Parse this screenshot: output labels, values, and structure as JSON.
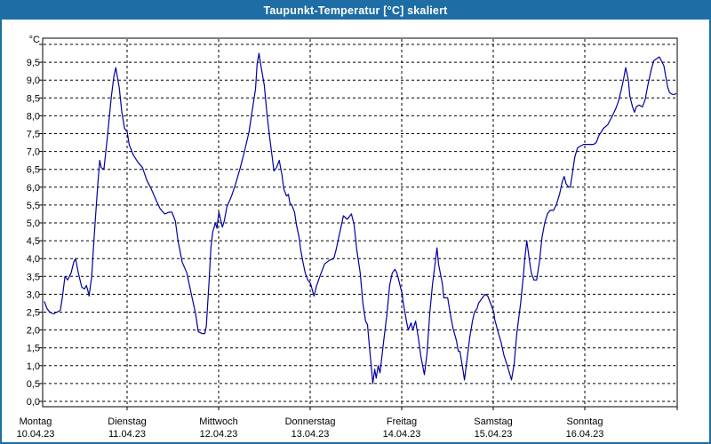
{
  "window": {
    "title": "Taupunkt-Temperatur [°C] skaliert"
  },
  "colors": {
    "accent_blue": "#1E6EA5",
    "line_blue": "#0000A0",
    "grid_color": "#000000",
    "background": "#FFFFFF",
    "title_text": "#FFFFFF",
    "label_text": "#000000"
  },
  "chart_data": {
    "type": "line",
    "title": "Taupunkt-Temperatur [°C] skaliert",
    "unit_label": "°C",
    "ylabel": "",
    "ylim": [
      0,
      10
    ],
    "y_tick_step": 0.5,
    "grid": true,
    "y_tick_labels": [
      "9,5",
      "9,0",
      "8,5",
      "8,0",
      "7,5",
      "7,0",
      "6,5",
      "6,0",
      "5,5",
      "5,0",
      "4,5",
      "4,0",
      "3,5",
      "3,0",
      "2,5",
      "2,0",
      "1,5",
      "1,0",
      "0,5",
      "0,0"
    ],
    "x_axis_days": [
      {
        "weekday": "Montag",
        "date": "10.04.23"
      },
      {
        "weekday": "Dienstag",
        "date": "11.04.23"
      },
      {
        "weekday": "Mittwoch",
        "date": "12.04.23"
      },
      {
        "weekday": "Donnerstag",
        "date": "13.04.23"
      },
      {
        "weekday": "Freitag",
        "date": "14.04.23"
      },
      {
        "weekday": "Samstag",
        "date": "15.04.23"
      },
      {
        "weekday": "Sonntag",
        "date": "16.04.23"
      }
    ],
    "x_hours_range": [
      0,
      168
    ],
    "series": [
      {
        "name": "Taupunkt",
        "color": "#0000A0",
        "points": [
          [
            2.3,
            2.8
          ],
          [
            3.0,
            2.6
          ],
          [
            3.7,
            2.5
          ],
          [
            4.7,
            2.45
          ],
          [
            5.6,
            2.5
          ],
          [
            6.5,
            2.55
          ],
          [
            7.0,
            2.9
          ],
          [
            7.7,
            3.5
          ],
          [
            8.4,
            3.4
          ],
          [
            9.3,
            3.6
          ],
          [
            10.0,
            3.9
          ],
          [
            10.5,
            4.0
          ],
          [
            11.2,
            3.6
          ],
          [
            12.1,
            3.2
          ],
          [
            12.8,
            3.15
          ],
          [
            13.3,
            3.25
          ],
          [
            13.7,
            3.1
          ],
          [
            14.0,
            2.95
          ],
          [
            14.7,
            3.5
          ],
          [
            15.1,
            4.2
          ],
          [
            15.6,
            5.0
          ],
          [
            16.3,
            6.1
          ],
          [
            16.8,
            6.75
          ],
          [
            17.2,
            6.55
          ],
          [
            17.9,
            6.5
          ],
          [
            18.4,
            7.0
          ],
          [
            18.9,
            7.5
          ],
          [
            19.8,
            8.5
          ],
          [
            20.5,
            9.1
          ],
          [
            21.0,
            9.35
          ],
          [
            21.4,
            9.1
          ],
          [
            21.9,
            8.8
          ],
          [
            22.6,
            8.1
          ],
          [
            23.3,
            7.65
          ],
          [
            24.0,
            7.55
          ],
          [
            24.5,
            7.2
          ],
          [
            25.6,
            6.9
          ],
          [
            26.8,
            6.7
          ],
          [
            28.0,
            6.55
          ],
          [
            29.1,
            6.2
          ],
          [
            30.3,
            5.95
          ],
          [
            31.5,
            5.65
          ],
          [
            32.6,
            5.4
          ],
          [
            33.8,
            5.25
          ],
          [
            35.0,
            5.3
          ],
          [
            35.7,
            5.3
          ],
          [
            36.6,
            5.05
          ],
          [
            37.3,
            4.5
          ],
          [
            38.4,
            3.9
          ],
          [
            39.6,
            3.6
          ],
          [
            40.8,
            3.0
          ],
          [
            41.9,
            2.45
          ],
          [
            42.6,
            1.95
          ],
          [
            43.6,
            1.9
          ],
          [
            44.3,
            1.9
          ],
          [
            44.7,
            2.1
          ],
          [
            45.4,
            3.3
          ],
          [
            45.9,
            4.3
          ],
          [
            46.4,
            4.75
          ],
          [
            47.1,
            5.0
          ],
          [
            47.5,
            4.85
          ],
          [
            48.0,
            5.3
          ],
          [
            48.9,
            4.88
          ],
          [
            49.4,
            5.05
          ],
          [
            50.1,
            5.45
          ],
          [
            51.3,
            5.75
          ],
          [
            52.4,
            6.1
          ],
          [
            53.6,
            6.55
          ],
          [
            54.8,
            7.05
          ],
          [
            55.9,
            7.55
          ],
          [
            56.6,
            8.05
          ],
          [
            57.6,
            8.75
          ],
          [
            58.0,
            9.45
          ],
          [
            58.5,
            9.75
          ],
          [
            59.0,
            9.4
          ],
          [
            59.9,
            8.85
          ],
          [
            60.6,
            8.05
          ],
          [
            61.3,
            7.4
          ],
          [
            62.0,
            6.8
          ],
          [
            62.4,
            6.45
          ],
          [
            63.1,
            6.55
          ],
          [
            63.8,
            6.75
          ],
          [
            64.5,
            6.35
          ],
          [
            65.0,
            5.95
          ],
          [
            65.7,
            5.75
          ],
          [
            66.2,
            5.8
          ],
          [
            66.6,
            5.55
          ],
          [
            67.1,
            5.5
          ],
          [
            67.8,
            5.3
          ],
          [
            68.3,
            4.95
          ],
          [
            69.0,
            4.6
          ],
          [
            69.4,
            4.25
          ],
          [
            70.1,
            3.85
          ],
          [
            70.6,
            3.6
          ],
          [
            71.3,
            3.4
          ],
          [
            72.0,
            3.3
          ],
          [
            72.9,
            2.95
          ],
          [
            73.6,
            3.25
          ],
          [
            74.6,
            3.55
          ],
          [
            75.7,
            3.85
          ],
          [
            76.9,
            3.95
          ],
          [
            78.1,
            4.0
          ],
          [
            78.7,
            4.25
          ],
          [
            79.4,
            4.6
          ],
          [
            80.2,
            5.0
          ],
          [
            80.6,
            5.2
          ],
          [
            81.6,
            5.1
          ],
          [
            82.7,
            5.25
          ],
          [
            83.4,
            4.95
          ],
          [
            84.1,
            4.25
          ],
          [
            85.0,
            3.6
          ],
          [
            85.7,
            2.75
          ],
          [
            86.4,
            2.25
          ],
          [
            86.9,
            2.15
          ],
          [
            87.4,
            1.55
          ],
          [
            87.8,
            1.1
          ],
          [
            88.3,
            0.5
          ],
          [
            88.8,
            0.9
          ],
          [
            89.2,
            0.65
          ],
          [
            89.7,
            1.0
          ],
          [
            90.2,
            0.8
          ],
          [
            91.1,
            1.65
          ],
          [
            92.0,
            2.45
          ],
          [
            92.7,
            3.25
          ],
          [
            93.4,
            3.6
          ],
          [
            94.1,
            3.7
          ],
          [
            94.6,
            3.6
          ],
          [
            95.3,
            3.3
          ],
          [
            96.0,
            3.0
          ],
          [
            96.2,
            2.8
          ],
          [
            97.2,
            2.2
          ],
          [
            97.6,
            2.0
          ],
          [
            98.3,
            2.2
          ],
          [
            98.8,
            2.0
          ],
          [
            99.5,
            2.25
          ],
          [
            100.2,
            1.8
          ],
          [
            100.9,
            1.25
          ],
          [
            101.8,
            0.75
          ],
          [
            102.5,
            1.35
          ],
          [
            103.2,
            2.45
          ],
          [
            103.9,
            3.25
          ],
          [
            104.6,
            3.85
          ],
          [
            105.1,
            4.3
          ],
          [
            105.5,
            3.85
          ],
          [
            106.5,
            3.3
          ],
          [
            106.9,
            2.9
          ],
          [
            107.9,
            2.9
          ],
          [
            108.6,
            2.45
          ],
          [
            109.3,
            2.05
          ],
          [
            110.2,
            1.7
          ],
          [
            110.7,
            1.4
          ],
          [
            111.1,
            1.4
          ],
          [
            111.8,
            0.95
          ],
          [
            112.3,
            0.6
          ],
          [
            113.0,
            1.2
          ],
          [
            113.7,
            1.8
          ],
          [
            114.4,
            2.25
          ],
          [
            114.9,
            2.5
          ],
          [
            115.6,
            2.6
          ],
          [
            116.0,
            2.75
          ],
          [
            117.0,
            2.9
          ],
          [
            117.7,
            3.0
          ],
          [
            118.4,
            2.95
          ],
          [
            119.3,
            2.7
          ],
          [
            120.0,
            2.5
          ],
          [
            120.2,
            2.3
          ],
          [
            121.2,
            1.9
          ],
          [
            121.9,
            1.65
          ],
          [
            122.6,
            1.3
          ],
          [
            123.5,
            1.0
          ],
          [
            124.2,
            0.75
          ],
          [
            124.6,
            0.6
          ],
          [
            125.3,
            1.05
          ],
          [
            126.0,
            1.9
          ],
          [
            127.0,
            2.75
          ],
          [
            127.7,
            3.5
          ],
          [
            128.1,
            4.0
          ],
          [
            128.6,
            4.5
          ],
          [
            129.3,
            3.95
          ],
          [
            129.8,
            3.6
          ],
          [
            130.5,
            3.4
          ],
          [
            131.2,
            3.4
          ],
          [
            131.9,
            3.9
          ],
          [
            132.6,
            4.6
          ],
          [
            133.3,
            5.0
          ],
          [
            134.0,
            5.25
          ],
          [
            134.7,
            5.35
          ],
          [
            135.6,
            5.35
          ],
          [
            136.3,
            5.5
          ],
          [
            137.2,
            5.8
          ],
          [
            137.9,
            6.15
          ],
          [
            138.4,
            6.3
          ],
          [
            138.9,
            6.1
          ],
          [
            139.6,
            6.0
          ],
          [
            140.0,
            6.0
          ],
          [
            140.7,
            6.5
          ],
          [
            141.2,
            6.85
          ],
          [
            141.9,
            7.1
          ],
          [
            142.6,
            7.15
          ],
          [
            143.5,
            7.2
          ],
          [
            144.0,
            7.2
          ],
          [
            144.9,
            7.2
          ],
          [
            146.1,
            7.2
          ],
          [
            146.8,
            7.25
          ],
          [
            147.5,
            7.45
          ],
          [
            148.7,
            7.65
          ],
          [
            149.8,
            7.75
          ],
          [
            150.8,
            7.95
          ],
          [
            151.9,
            8.2
          ],
          [
            152.6,
            8.4
          ],
          [
            153.3,
            8.7
          ],
          [
            154.0,
            9.05
          ],
          [
            154.5,
            9.35
          ],
          [
            155.2,
            9.0
          ],
          [
            155.6,
            8.55
          ],
          [
            156.3,
            8.25
          ],
          [
            156.8,
            8.1
          ],
          [
            157.3,
            8.25
          ],
          [
            158.0,
            8.3
          ],
          [
            158.9,
            8.25
          ],
          [
            159.6,
            8.45
          ],
          [
            160.3,
            8.85
          ],
          [
            161.2,
            9.3
          ],
          [
            161.9,
            9.55
          ],
          [
            162.6,
            9.6
          ],
          [
            163.3,
            9.65
          ],
          [
            163.8,
            9.55
          ],
          [
            164.5,
            9.4
          ],
          [
            165.0,
            9.1
          ],
          [
            165.5,
            8.8
          ],
          [
            166.0,
            8.65
          ],
          [
            166.7,
            8.6
          ],
          [
            167.4,
            8.6
          ],
          [
            168.0,
            8.65
          ]
        ]
      }
    ]
  }
}
